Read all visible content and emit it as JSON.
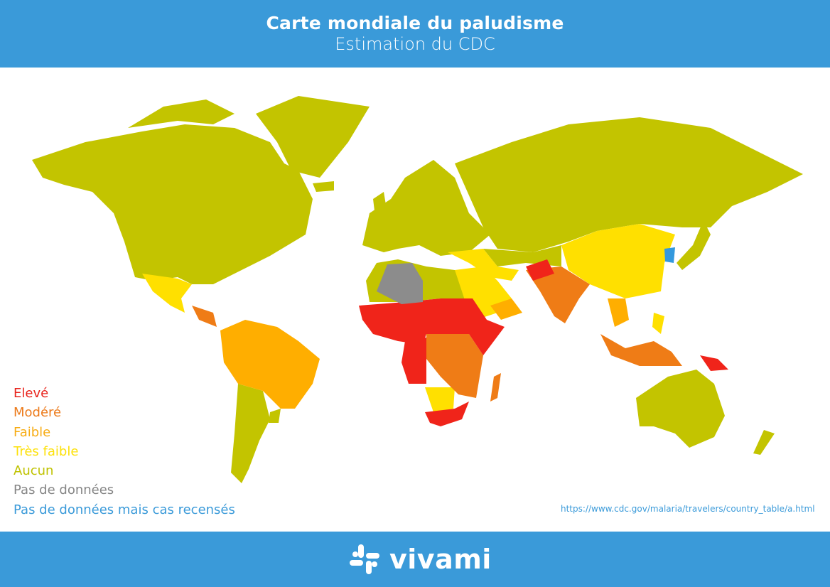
{
  "header": {
    "title": "Carte mondiale du paludisme",
    "subtitle": "Estimation du CDC"
  },
  "legend": [
    {
      "label": "Elevé",
      "color": "#e8231c"
    },
    {
      "label": "Modéré",
      "color": "#ec7a1a"
    },
    {
      "label": "Faible",
      "color": "#f7ac14"
    },
    {
      "label": "Très faible",
      "color": "#fde10a"
    },
    {
      "label": "Aucun",
      "color": "#bfc200"
    },
    {
      "label": "Pas de données",
      "color": "#858585"
    },
    {
      "label": "Pas de données mais cas recensés",
      "color": "#3a9ad9"
    }
  ],
  "source_url": "https://www.cdc.gov/malaria/travelers/country_table/a.html",
  "footer": {
    "brand": "vivami",
    "background": "#3a9ad9"
  }
}
